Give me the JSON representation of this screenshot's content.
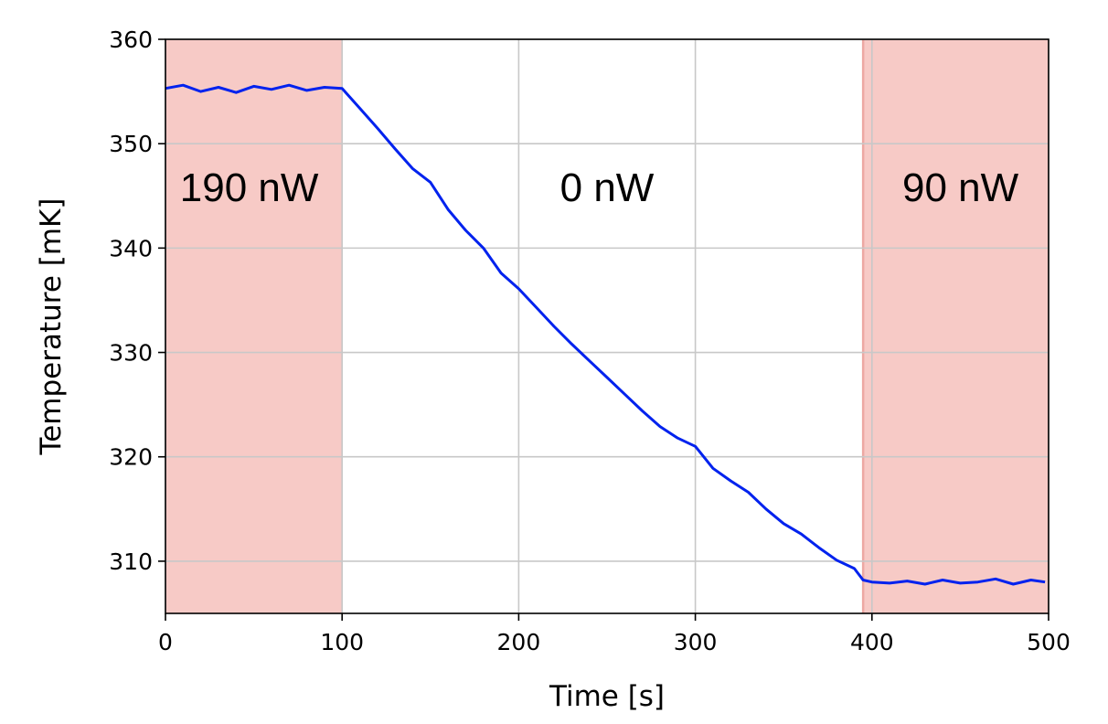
{
  "chart_data": {
    "type": "line",
    "title": "",
    "xlabel": "Time [s]",
    "ylabel": "Temperature [mK]",
    "xlim": [
      0,
      500
    ],
    "ylim": [
      305,
      360
    ],
    "xticks": [
      0,
      100,
      200,
      300,
      400,
      500
    ],
    "yticks": [
      310,
      320,
      330,
      340,
      350,
      360
    ],
    "grid": true,
    "line_color": "#0022ee",
    "shade_color": "#f7cac6",
    "regions": [
      {
        "x_start": 0,
        "x_end": 100,
        "label": "190 nW",
        "shaded": true
      },
      {
        "x_start": 100,
        "x_end": 395,
        "label": "0 nW",
        "shaded": false
      },
      {
        "x_start": 395,
        "x_end": 500,
        "label": "90 nW",
        "shaded": true
      }
    ],
    "series": [
      {
        "x": [
          0,
          10,
          20,
          30,
          40,
          50,
          60,
          70,
          80,
          90,
          100,
          110,
          120,
          130,
          140,
          150,
          160,
          170,
          180,
          190,
          200,
          210,
          220,
          230,
          240,
          250,
          260,
          270,
          280,
          290,
          300,
          310,
          320,
          330,
          340,
          350,
          360,
          370,
          380,
          390,
          395,
          400,
          410,
          420,
          430,
          440,
          450,
          460,
          470,
          480,
          490,
          498
        ],
        "y": [
          355.3,
          355.6,
          355.0,
          355.4,
          354.9,
          355.5,
          355.2,
          355.6,
          355.1,
          355.4,
          355.3,
          353.4,
          351.5,
          349.5,
          347.6,
          346.3,
          343.7,
          341.7,
          340.0,
          337.6,
          336.1,
          334.3,
          332.5,
          330.8,
          329.2,
          327.6,
          326.0,
          324.4,
          322.9,
          321.8,
          321.0,
          318.9,
          317.7,
          316.6,
          315.0,
          313.6,
          312.6,
          311.3,
          310.1,
          309.3,
          308.2,
          308.0,
          307.9,
          308.1,
          307.8,
          308.2,
          307.9,
          308.0,
          308.3,
          307.8,
          308.2,
          308.0
        ]
      }
    ]
  }
}
